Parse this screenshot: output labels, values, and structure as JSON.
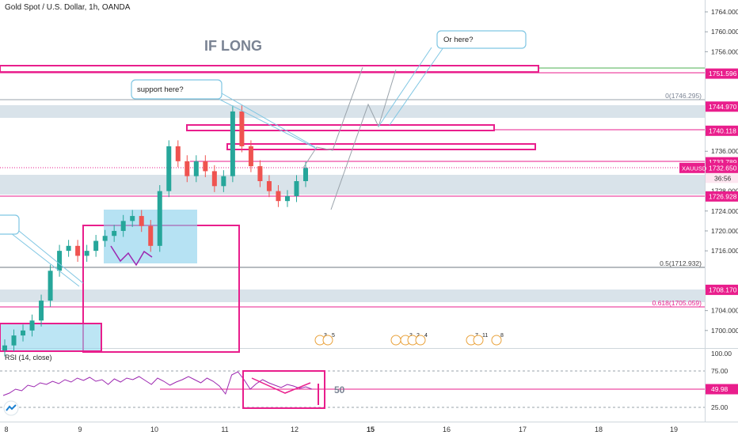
{
  "header": {
    "symbol_title": "Gold Spot / U.S. Dollar, 1h, OANDA"
  },
  "annotations": {
    "if_long": "IF LONG",
    "support_callout": "support here?",
    "or_here_callout": "Or here?",
    "rsi_level_text": "50"
  },
  "fib": {
    "f0": "0(1746.295)",
    "f05": "0.5(1712.932)",
    "f0618": "0.618(1705.059)"
  },
  "price_axis": {
    "ticks": [
      "1764.000",
      "1760.000",
      "1756.000",
      "1736.000",
      "1724.000",
      "1720.000",
      "1716.000",
      "1704.000",
      "1700.000"
    ],
    "badges": [
      {
        "text": "1751.596",
        "price": 1751.596,
        "color": "#e91e8c"
      },
      {
        "text": "1744.970",
        "price": 1744.97,
        "color": "#e91e8c"
      },
      {
        "text": "1740.118",
        "price": 1740.118,
        "color": "#e91e8c"
      },
      {
        "text": "1733.789",
        "price": 1733.789,
        "color": "#e91e8c"
      },
      {
        "text": "1732.650",
        "price": 1732.65,
        "color": "#e91e8c"
      },
      {
        "text": "1726.928",
        "price": 1726.928,
        "color": "#e91e8c"
      },
      {
        "text": "1708.170",
        "price": 1708.17,
        "color": "#e91e8c"
      }
    ],
    "symbol_tag": "XAUUSD",
    "countdown": "36:56",
    "partial_tick": "1728.000"
  },
  "rsi": {
    "title": "RSI (14, close)",
    "ticks": [
      "100.00",
      "75.00",
      "25.00"
    ],
    "value_badge": "49.98"
  },
  "time_axis": {
    "labels": [
      "8",
      "9",
      "10",
      "11",
      "12",
      "15",
      "16",
      "17",
      "18",
      "19"
    ]
  },
  "event_badges": [
    "3",
    "5",
    "3",
    "2",
    "4",
    "7",
    "11",
    "8"
  ],
  "colors": {
    "magenta": "#e91e8c",
    "bull": "#26a69a",
    "bear": "#ef5350",
    "zone": "#d9e3ea",
    "box_blue": "#8fd3ec",
    "callout": "#7fc6e3",
    "rsi_line": "#9c27b0",
    "green_line": "#4caf50"
  },
  "chart_data": {
    "type": "candlestick",
    "title": "Gold Spot / U.S. Dollar, 1h, OANDA",
    "ylim": [
      1696,
      1766
    ],
    "x": [
      "8",
      "9",
      "10",
      "11",
      "12",
      "15",
      "16",
      "17",
      "18",
      "19"
    ],
    "approx_closes": [
      1697,
      1699,
      1700,
      1702,
      1706,
      1712,
      1716,
      1717,
      1715,
      1716,
      1718,
      1719,
      1720,
      1722,
      1723,
      1721,
      1717,
      1728,
      1737,
      1734,
      1731,
      1734,
      1732,
      1729,
      1731,
      1744,
      1737,
      1733,
      1730,
      1728,
      1726,
      1727,
      1730,
      1732.65
    ],
    "levels": {
      "resistance": [
        1751.596,
        1744.97,
        1740.118,
        1733.789
      ],
      "support": [
        1726.928,
        1708.17
      ]
    },
    "rsi_level": 50,
    "rsi_last": 49.98
  }
}
